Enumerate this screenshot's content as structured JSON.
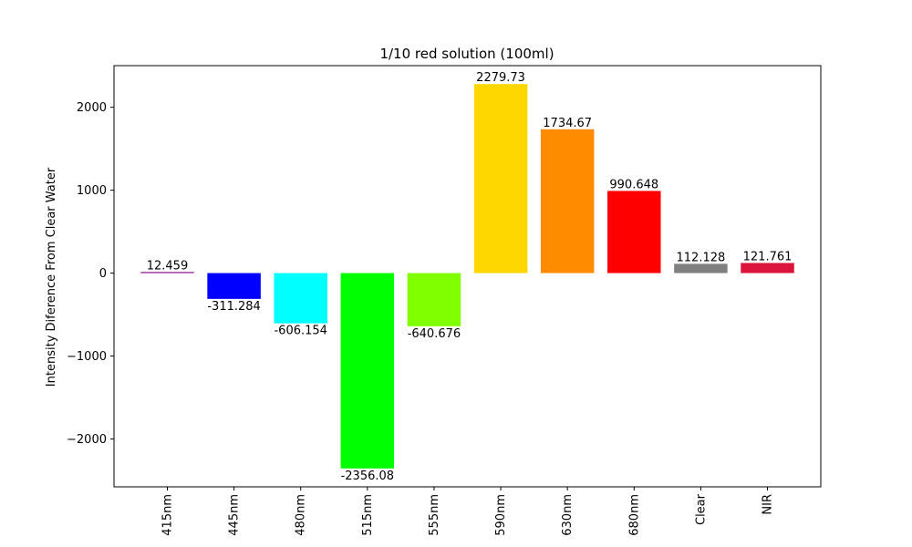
{
  "chart_data": {
    "type": "bar",
    "title": "1/10 red solution (100ml)",
    "xlabel": "",
    "ylabel": "Intensity Diference From Clear Water",
    "categories": [
      "415nm",
      "445nm",
      "480nm",
      "515nm",
      "555nm",
      "590nm",
      "630nm",
      "680nm",
      "Clear",
      "NIR"
    ],
    "values": [
      12.459,
      -311.284,
      -606.154,
      -2356.08,
      -640.676,
      2279.73,
      1734.67,
      990.648,
      112.128,
      121.761
    ],
    "value_labels": [
      "12.459",
      "-311.284",
      "-606.154",
      "-2356.08",
      "-640.676",
      "2279.73",
      "1734.67",
      "990.648",
      "112.128",
      "121.761"
    ],
    "colors": [
      "#800080",
      "#0000ff",
      "#00ffff",
      "#00ff00",
      "#7fff00",
      "#ffd700",
      "#ff8c00",
      "#ff0000",
      "#808080",
      "#dc143c"
    ],
    "ylim": [
      -2578,
      2502
    ],
    "yticks": [
      -2000,
      -1000,
      0,
      1000,
      2000
    ],
    "ytick_labels": [
      "−2000",
      "−1000",
      "0",
      "1000",
      "2000"
    ],
    "grid": false,
    "legend": "none"
  }
}
